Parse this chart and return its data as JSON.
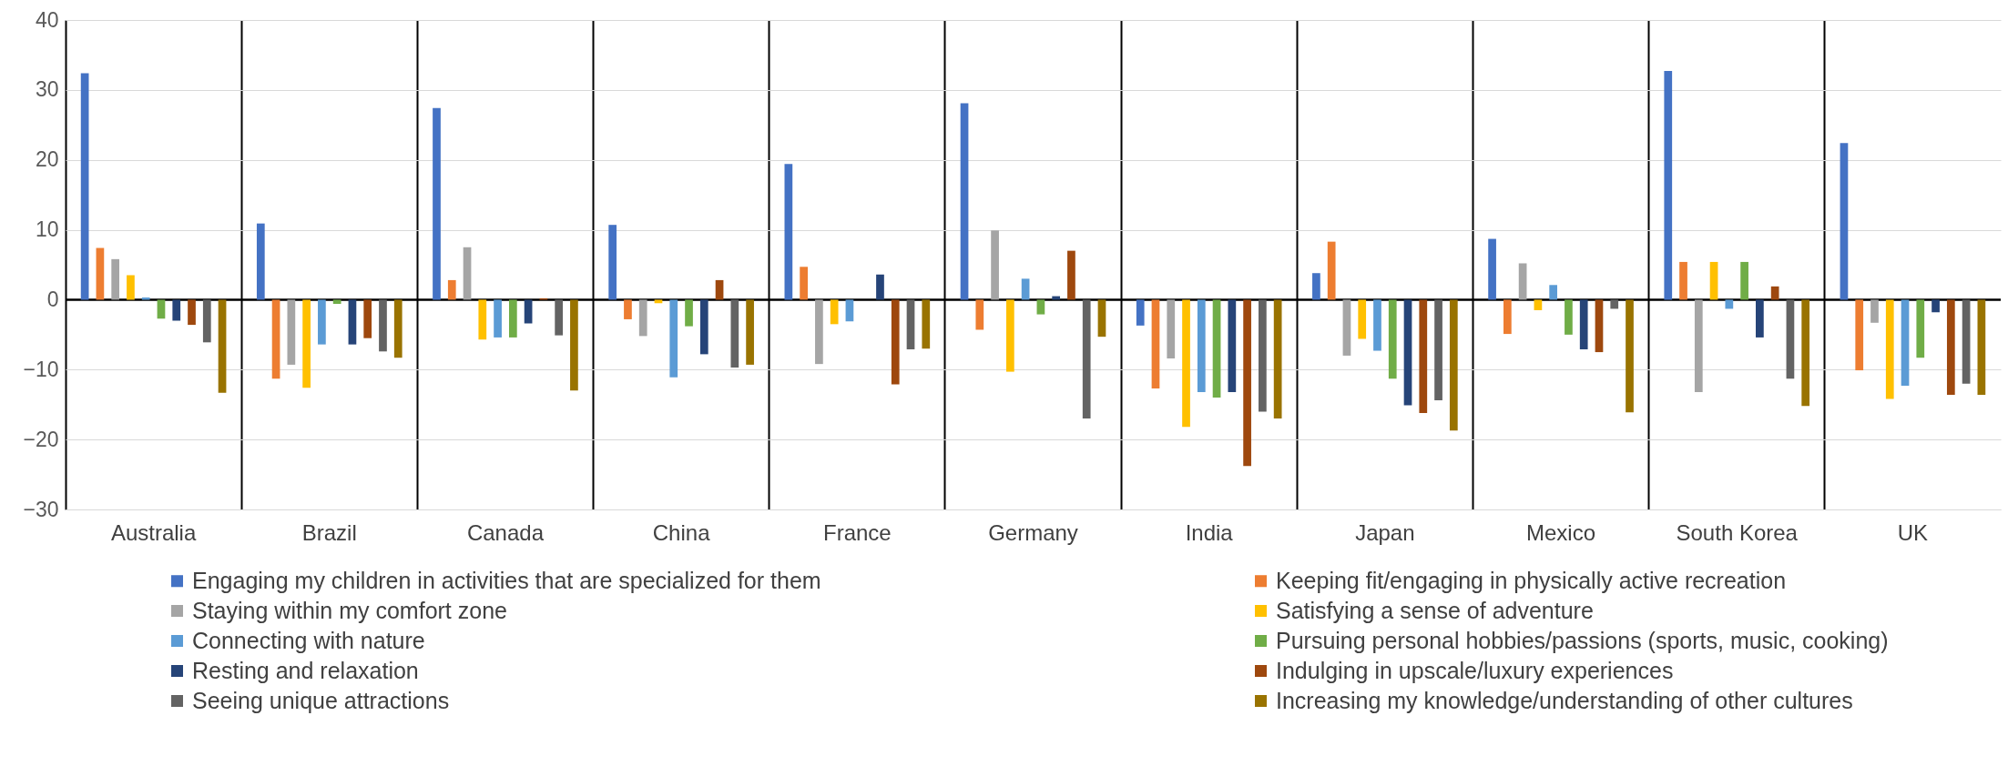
{
  "chart_data": {
    "type": "bar",
    "categories": [
      "Australia",
      "Brazil",
      "Canada",
      "China",
      "France",
      "Germany",
      "India",
      "Japan",
      "Mexico",
      "South Korea",
      "UK"
    ],
    "ylim": [
      -30,
      40
    ],
    "yticks": [
      -30,
      -20,
      -10,
      0,
      10,
      20,
      30,
      40
    ],
    "grid": true,
    "legend": "bottom",
    "ref_lines": [
      {
        "axis": "y",
        "value": 0,
        "color": "#000000"
      }
    ],
    "series": [
      {
        "name": "Engaging my children in activities that are specialized for them",
        "color": "#4472c4",
        "values": [
          32.4,
          10.9,
          27.4,
          10.7,
          19.4,
          28.1,
          -3.7,
          3.8,
          8.7,
          32.7,
          22.4
        ]
      },
      {
        "name": "Keeping fit/engaging in physically active recreation",
        "color": "#ed7d31",
        "values": [
          7.4,
          -11.3,
          2.8,
          -2.8,
          4.7,
          -4.3,
          -12.7,
          8.3,
          -4.9,
          5.4,
          -10.1
        ]
      },
      {
        "name": "Staying within my comfort zone",
        "color": "#a5a5a5",
        "values": [
          5.8,
          -9.3,
          7.5,
          -5.2,
          -9.2,
          9.9,
          -8.4,
          -8.0,
          5.2,
          -13.2,
          -3.3
        ]
      },
      {
        "name": "Satisfying a sense of adventure",
        "color": "#ffc000",
        "values": [
          3.5,
          -12.6,
          -5.7,
          -0.5,
          -3.5,
          -10.3,
          -18.2,
          -5.6,
          -1.5,
          5.4,
          -14.2
        ]
      },
      {
        "name": "Connecting with nature",
        "color": "#5b9bd5",
        "values": [
          0.3,
          -6.4,
          -5.4,
          -11.1,
          -3.1,
          3.0,
          -13.2,
          -7.3,
          2.1,
          -1.3,
          -12.3
        ]
      },
      {
        "name": "Pursuing personal hobbies/passions (sports, music, cooking)",
        "color": "#70ad47",
        "values": [
          -2.7,
          -0.6,
          -5.4,
          -3.8,
          0,
          -2.1,
          -14.0,
          -11.3,
          -5.0,
          5.4,
          -8.3
        ]
      },
      {
        "name": "Resting and relaxation",
        "color": "#264478",
        "values": [
          -3.0,
          -6.4,
          -3.4,
          -7.8,
          3.6,
          0.5,
          -13.2,
          -15.1,
          -7.1,
          -5.4,
          -1.8
        ]
      },
      {
        "name": "Indulging in upscale/luxury experiences",
        "color": "#9e480e",
        "values": [
          -3.6,
          -5.5,
          0.2,
          2.8,
          -12.1,
          7.0,
          -23.8,
          -16.2,
          -7.5,
          1.9,
          -13.6
        ]
      },
      {
        "name": "Seeing unique attractions",
        "color": "#636363",
        "values": [
          -6.1,
          -7.4,
          -5.1,
          -9.7,
          -7.1,
          -17.0,
          -16.0,
          -14.4,
          -1.3,
          -11.3,
          -12.0
        ]
      },
      {
        "name": "Increasing my knowledge/understanding of other cultures",
        "color": "#997300",
        "values": [
          -13.3,
          -8.3,
          -13.0,
          -9.3,
          -7.0,
          -5.3,
          -17.0,
          -18.7,
          -16.1,
          -15.2,
          -13.6
        ]
      }
    ]
  }
}
